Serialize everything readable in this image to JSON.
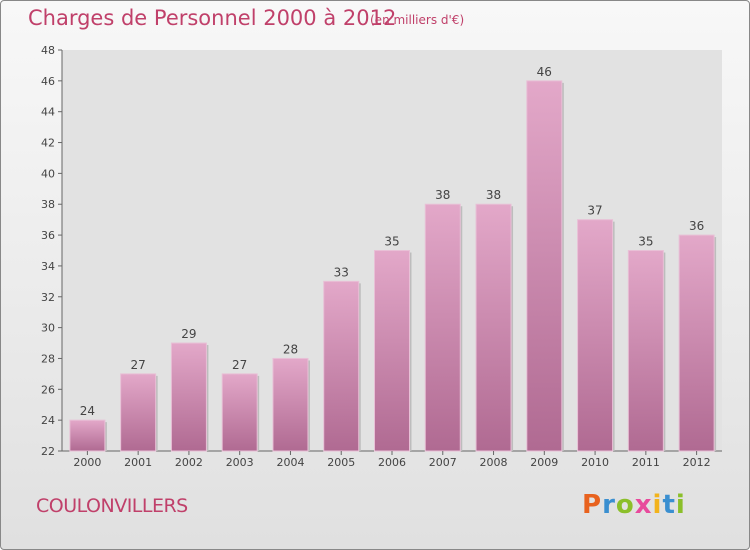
{
  "header": {
    "title": "Charges de Personnel 2000 à 2012",
    "subtitle": "(en milliers d'€)"
  },
  "footer": {
    "town": "COULONVILLERS",
    "logo": "Proxiti"
  },
  "chart_data": {
    "type": "bar",
    "title": "Charges de Personnel 2000 à 2012",
    "subtitle": "(en milliers d'€)",
    "categories": [
      "2000",
      "2001",
      "2002",
      "2003",
      "2004",
      "2005",
      "2006",
      "2007",
      "2008",
      "2009",
      "2010",
      "2011",
      "2012"
    ],
    "values": [
      24,
      27,
      29,
      27,
      28,
      33,
      35,
      38,
      38,
      46,
      37,
      35,
      36
    ],
    "ylim": [
      22,
      48
    ],
    "yticks": [
      22,
      24,
      26,
      28,
      30,
      32,
      34,
      36,
      38,
      40,
      42,
      44,
      46,
      48
    ],
    "grid": false,
    "bar_color": "#cf86aa",
    "text_color": "#c0406a"
  }
}
